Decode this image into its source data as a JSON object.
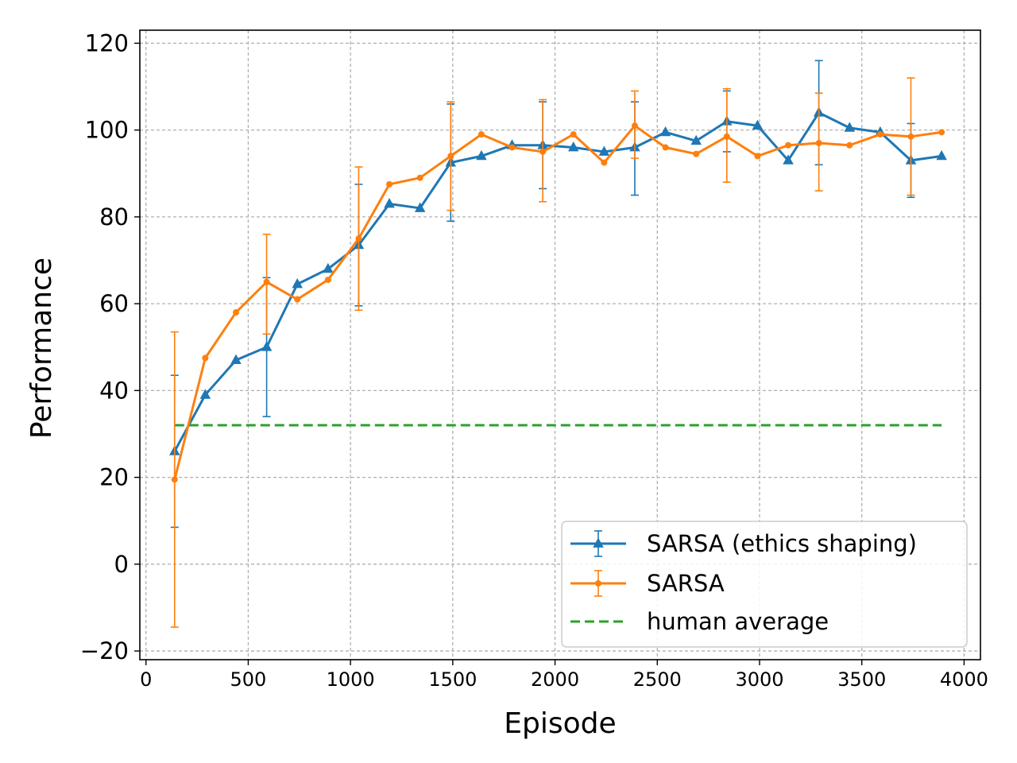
{
  "chart_data": {
    "type": "line",
    "title": "",
    "xlabel": "Episode",
    "ylabel": "Performance",
    "xlim": [
      -30,
      4080
    ],
    "ylim": [
      -22,
      123
    ],
    "xticks": [
      0,
      500,
      1000,
      1500,
      2000,
      2500,
      3000,
      3500,
      4000
    ],
    "yticks": [
      -20,
      0,
      20,
      40,
      60,
      80,
      100,
      120
    ],
    "xtick_labels": [
      "0",
      "500",
      "1000",
      "1500",
      "2000",
      "2500",
      "3000",
      "3500",
      "4000"
    ],
    "ytick_labels": [
      "−20",
      "0",
      "20",
      "40",
      "60",
      "80",
      "100",
      "120"
    ],
    "grid": true,
    "legend_position": "lower-right",
    "series": [
      {
        "name": "SARSA (ethics shaping)",
        "color": "#1f77b4",
        "marker": "triangle",
        "x": [
          140,
          290,
          440,
          590,
          740,
          890,
          1040,
          1190,
          1340,
          1490,
          1640,
          1790,
          1940,
          2090,
          2240,
          2390,
          2540,
          2690,
          2840,
          2990,
          3140,
          3290,
          3440,
          3590,
          3740,
          3890
        ],
        "y": [
          26,
          39,
          47,
          50,
          64.5,
          68,
          73.5,
          83,
          82,
          92.5,
          94,
          96.5,
          96.5,
          96,
          95,
          96,
          99.5,
          97.5,
          102,
          101,
          93,
          104,
          100.5,
          99.5,
          93,
          94
        ],
        "errors": [
          {
            "x": 140,
            "low": 8.5,
            "high": 43.5
          },
          {
            "x": 590,
            "low": 34,
            "high": 66
          },
          {
            "x": 1040,
            "low": 59.5,
            "high": 87.5
          },
          {
            "x": 1490,
            "low": 79,
            "high": 106
          },
          {
            "x": 1940,
            "low": 86.5,
            "high": 106.5
          },
          {
            "x": 2390,
            "low": 85,
            "high": 106.5
          },
          {
            "x": 2840,
            "low": 95,
            "high": 109
          },
          {
            "x": 3290,
            "low": 92,
            "high": 116
          },
          {
            "x": 3740,
            "low": 84.5,
            "high": 101.5
          }
        ]
      },
      {
        "name": "SARSA",
        "color": "#ff7f0e",
        "marker": "dot",
        "x": [
          140,
          290,
          440,
          590,
          740,
          890,
          1040,
          1190,
          1340,
          1490,
          1640,
          1790,
          1940,
          2090,
          2240,
          2390,
          2540,
          2690,
          2840,
          2990,
          3140,
          3290,
          3440,
          3590,
          3740,
          3890
        ],
        "y": [
          19.5,
          47.5,
          58,
          65,
          61,
          65.5,
          75,
          87.5,
          89,
          94,
          99,
          96,
          95,
          99,
          92.5,
          101,
          96,
          94.5,
          98.5,
          94,
          96.5,
          97,
          96.5,
          99,
          98.5,
          99.5
        ],
        "errors": [
          {
            "x": 140,
            "low": -14.5,
            "high": 53.5
          },
          {
            "x": 590,
            "low": 53,
            "high": 76
          },
          {
            "x": 1040,
            "low": 58.5,
            "high": 91.5
          },
          {
            "x": 1490,
            "low": 81.5,
            "high": 106.5
          },
          {
            "x": 1940,
            "low": 83.5,
            "high": 107
          },
          {
            "x": 2390,
            "low": 93.5,
            "high": 109
          },
          {
            "x": 2840,
            "low": 88,
            "high": 109.5
          },
          {
            "x": 3290,
            "low": 86,
            "high": 108.5
          },
          {
            "x": 3740,
            "low": 85,
            "high": 112
          }
        ]
      },
      {
        "name": "human average",
        "color": "#2ca02c",
        "style": "dashed",
        "x": [
          140,
          3890
        ],
        "y": [
          32,
          32
        ]
      }
    ]
  }
}
